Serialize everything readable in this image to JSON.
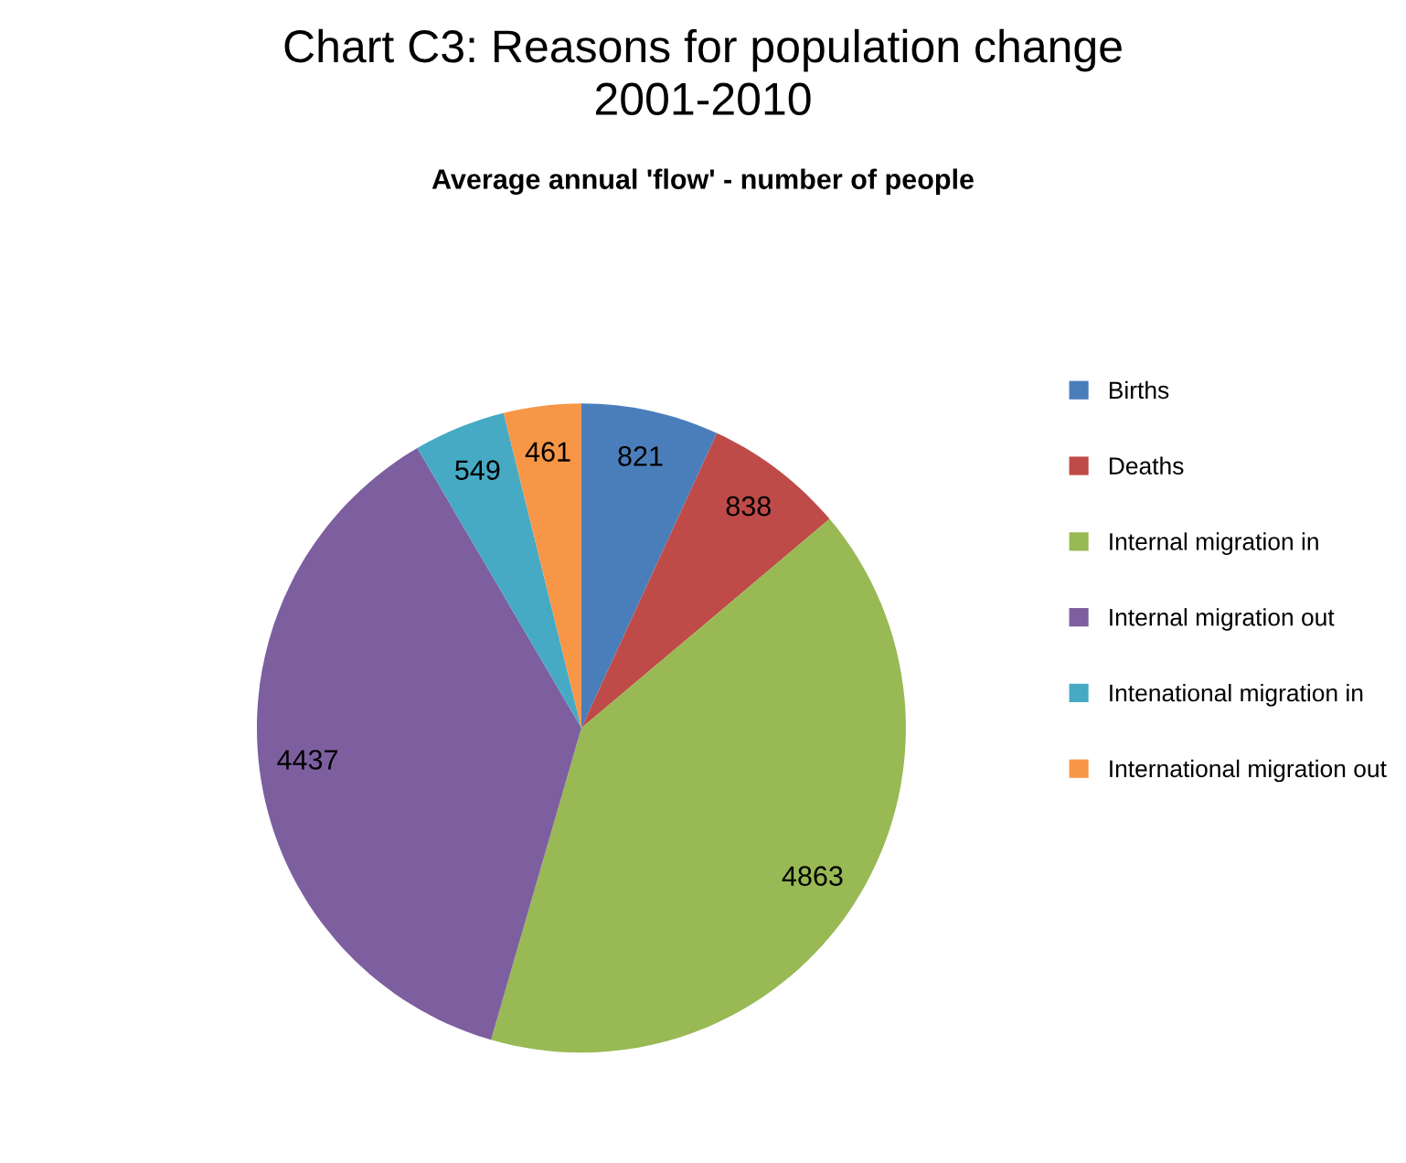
{
  "chart_data": {
    "type": "pie",
    "title": "Chart C3: Reasons for population change\n2001-2010",
    "subtitle": "Average annual 'flow' - number of people",
    "categories": [
      "Births",
      "Deaths",
      "Internal migration in",
      "Internal migration out",
      "Intenational migration in",
      "International migration out"
    ],
    "values": [
      821,
      838,
      4863,
      4437,
      549,
      461
    ],
    "colors": [
      "#4a7ebb",
      "#be4b48",
      "#98b954",
      "#7d5fa0",
      "#46aac5",
      "#f79646"
    ],
    "data_labels": true,
    "legend": "right"
  }
}
